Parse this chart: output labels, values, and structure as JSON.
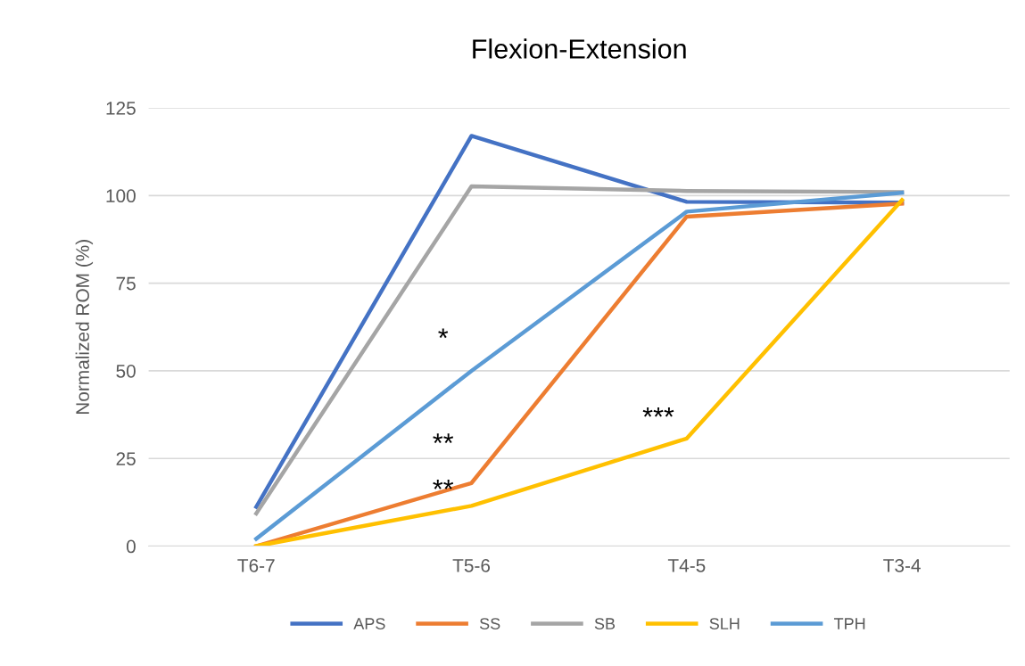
{
  "chart_data": {
    "type": "line",
    "title": "Flexion-Extension",
    "ylabel": "Normalized ROM (%)",
    "categories": [
      "T6-7",
      "T5-6",
      "T4-5",
      "T3-4"
    ],
    "series": [
      {
        "name": "APS",
        "color": "#4472c4",
        "values": [
          11.2,
          117,
          98.2,
          98
        ]
      },
      {
        "name": "SS",
        "color": "#ed7d31",
        "values": [
          0,
          18,
          94,
          97.7
        ]
      },
      {
        "name": "SB",
        "color": "#a5a5a5",
        "values": [
          9.3,
          102.6,
          101.3,
          101
        ]
      },
      {
        "name": "SLH",
        "color": "#ffc000",
        "values": [
          0,
          11.5,
          30.7,
          98.7
        ]
      },
      {
        "name": "TPH",
        "color": "#5b9bd5",
        "values": [
          2.1,
          50,
          95.4,
          100.8
        ]
      }
    ],
    "annotations": [
      "*",
      "**",
      "**",
      "***"
    ],
    "ylim": [
      0,
      125
    ],
    "yticks": [
      0,
      25,
      50,
      75,
      100,
      125
    ],
    "grid": "y",
    "legend": "bottom",
    "marker": "none",
    "line_style": "solid"
  }
}
